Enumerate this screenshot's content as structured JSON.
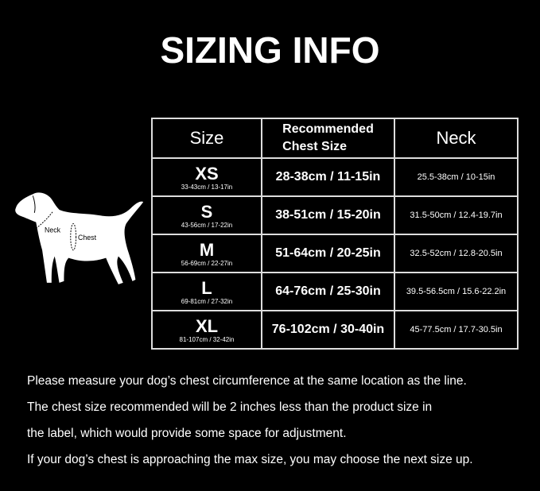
{
  "title": "SIZING INFO",
  "table": {
    "headers": [
      "Size",
      "Recommended\nChest Size",
      "Neck"
    ],
    "header_chest_lines": [
      "Recommended",
      "Chest Size"
    ],
    "rows": [
      {
        "size": "XS",
        "size_range": "33-43cm / 13-17in",
        "chest": "28-38cm / 11-15in",
        "neck": "25.5-38cm / 10-15in"
      },
      {
        "size": "S",
        "size_range": "43-56cm / 17-22in",
        "chest": "38-51cm / 15-20in",
        "neck": "31.5-50cm / 12.4-19.7in"
      },
      {
        "size": "M",
        "size_range": "56-69cm / 22-27in",
        "chest": "51-64cm / 20-25in",
        "neck": "32.5-52cm / 12.8-20.5in"
      },
      {
        "size": "L",
        "size_range": "69-81cm / 27-32in",
        "chest": "64-76cm / 25-30in",
        "neck": "39.5-56.5cm / 15.6-22.2in"
      },
      {
        "size": "XL",
        "size_range": "81-107cm / 32-42in",
        "chest": "76-102cm / 30-40in",
        "neck": "45-77.5cm / 17.7-30.5in"
      }
    ]
  },
  "dog_labels": {
    "neck": "Neck",
    "chest": "Chest"
  },
  "notes": [
    "Please measure your dog’s chest circumference at the same location as the line.",
    "The chest size recommended will be 2 inches less than the product size in",
    "the label, which would provide some space for adjustment.",
    "If your dog’s chest is approaching the max size, you may choose the next size up."
  ]
}
